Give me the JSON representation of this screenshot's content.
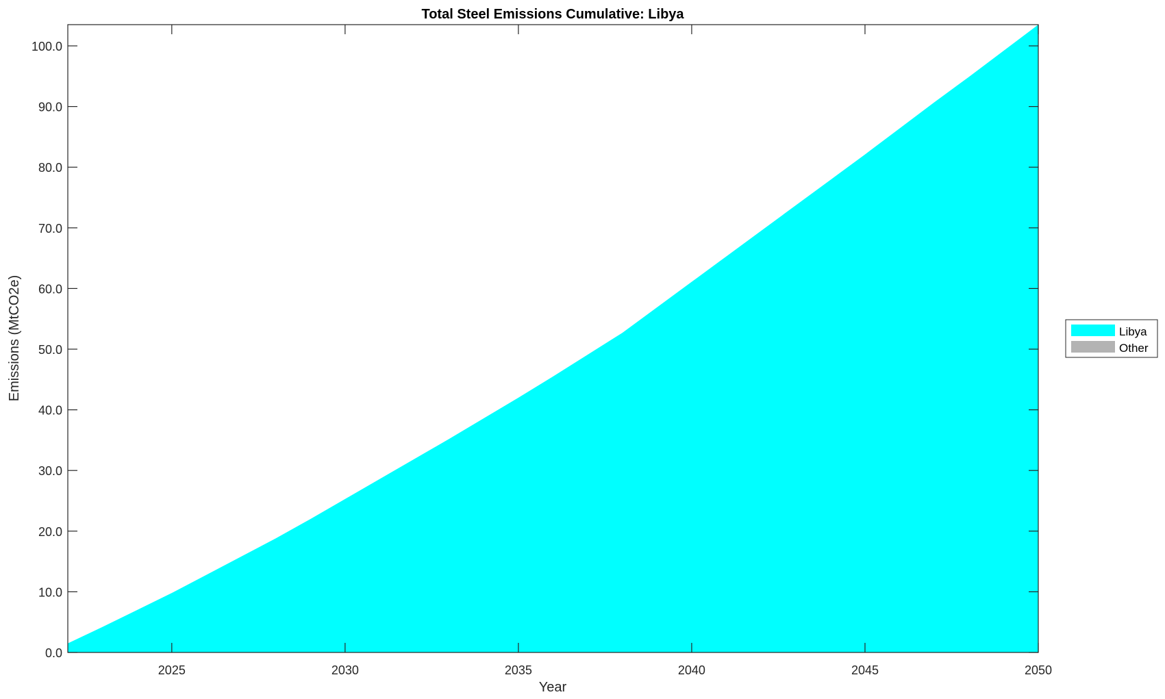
{
  "chart_data": {
    "type": "area",
    "title": "Total Steel Emissions Cumulative: Libya",
    "xlabel": "Year",
    "ylabel": "Emissions (MtCO2e)",
    "xlim": [
      2022,
      2050
    ],
    "ylim": [
      0,
      103.5
    ],
    "xticks": [
      2025,
      2030,
      2035,
      2040,
      2045,
      2050
    ],
    "yticks": [
      0,
      10,
      20,
      30,
      40,
      50,
      60,
      70,
      80,
      90,
      100
    ],
    "ytick_labels": [
      "0.0",
      "10.0",
      "20.0",
      "30.0",
      "40.0",
      "50.0",
      "60.0",
      "70.0",
      "80.0",
      "90.0",
      "100.0"
    ],
    "grid": false,
    "legend_position": "outside-right",
    "x": [
      2022,
      2023,
      2024,
      2025,
      2026,
      2027,
      2028,
      2029,
      2030,
      2031,
      2032,
      2033,
      2034,
      2035,
      2036,
      2037,
      2038,
      2039,
      2040,
      2041,
      2042,
      2043,
      2044,
      2045,
      2046,
      2047,
      2048,
      2049,
      2050
    ],
    "series": [
      {
        "name": "Libya",
        "color": "#00FFFF",
        "values": [
          1.5,
          4.2,
          7.0,
          9.8,
          12.8,
          15.8,
          18.8,
          22.0,
          25.3,
          28.6,
          31.9,
          35.2,
          38.6,
          42.0,
          45.5,
          49.1,
          52.7,
          56.9,
          61.1,
          65.3,
          69.5,
          73.7,
          77.9,
          82.1,
          86.4,
          90.7,
          94.9,
          99.2,
          103.5
        ]
      },
      {
        "name": "Other",
        "color": "#B3B3B3",
        "values": [
          0,
          0,
          0,
          0,
          0,
          0,
          0,
          0,
          0,
          0,
          0,
          0,
          0,
          0,
          0,
          0,
          0,
          0,
          0,
          0,
          0,
          0,
          0,
          0,
          0,
          0,
          0,
          0,
          0
        ]
      }
    ]
  }
}
